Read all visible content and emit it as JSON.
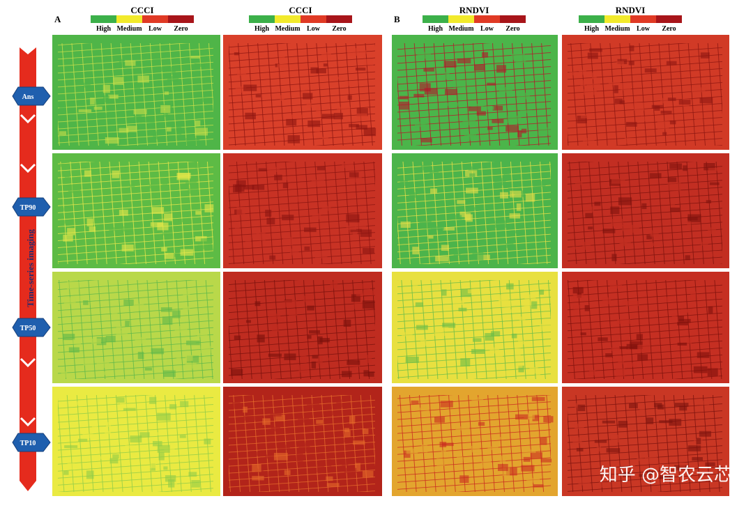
{
  "panels": [
    {
      "label": "A",
      "legends": [
        {
          "title": "CCCI",
          "levels": [
            "High",
            "Medium",
            "Low",
            "Zero"
          ]
        },
        {
          "title": "CCCI",
          "levels": [
            "High",
            "Medium",
            "Low",
            "Zero"
          ]
        }
      ]
    },
    {
      "label": "B",
      "legends": [
        {
          "title": "RNDVI",
          "levels": [
            "High",
            "Medium",
            "Low",
            "Zero"
          ]
        },
        {
          "title": "RNDVI",
          "levels": [
            "High",
            "Medium",
            "Low",
            "Zero"
          ]
        }
      ]
    }
  ],
  "timeline": {
    "title": "Time-series imaging",
    "stages": [
      "Ans",
      "TP90",
      "TP50",
      "TP10"
    ]
  },
  "watermark": "知乎 @智农云芯"
}
